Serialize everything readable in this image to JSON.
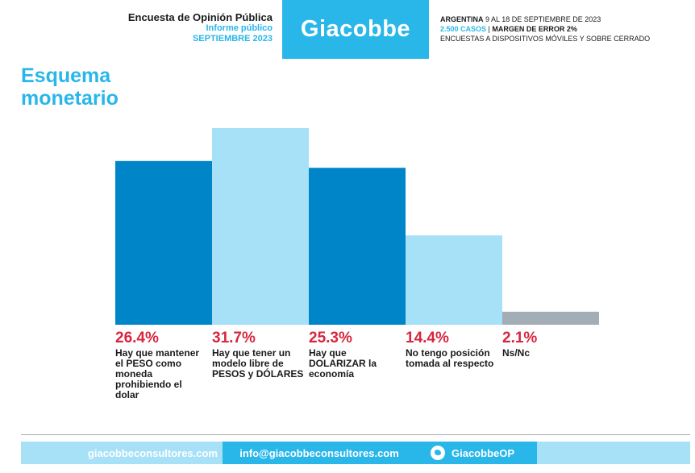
{
  "header": {
    "survey_title": "Encuesta de Opinión Pública",
    "report_type": "Informe público",
    "report_date": "SEPTIEMBRE 2023",
    "brand": "Giacobbe",
    "country": "ARGENTINA",
    "field_dates": "9 AL 18 DE SEPTIEMBRE DE 2023",
    "cases": "2.500 CASOS",
    "margin_of_error": "MARGEN DE ERROR 2%",
    "method": "ENCUESTAS A DISPOSITIVOS MÓVILES Y SOBRE CERRADO"
  },
  "chart_data": {
    "type": "bar",
    "title": "Esquema monetario",
    "categories": [
      "Hay que mantener el PESO como moneda prohibiendo el dolar",
      "Hay que tener un modelo libre de PESOS y DÓLARES",
      "Hay que DOLARIZAR la economía",
      "No tengo posición tomada al respecto",
      "Ns/Nc"
    ],
    "values": [
      26.4,
      31.7,
      25.3,
      14.4,
      2.1
    ],
    "value_labels": [
      "26.4%",
      "31.7%",
      "25.3%",
      "14.4%",
      "2.1%"
    ],
    "colors": [
      "#0085c8",
      "#a6e1f8",
      "#0085c8",
      "#a6e1f8",
      "#a3adb5"
    ],
    "ylim": [
      0,
      31.7
    ],
    "grid": false
  },
  "footer": {
    "website": "giacobbeconsultores.com",
    "email": "info@giacobbeconsultores.com",
    "twitter": "GiacobbeOP",
    "twitter_icon": "twitter-icon"
  }
}
